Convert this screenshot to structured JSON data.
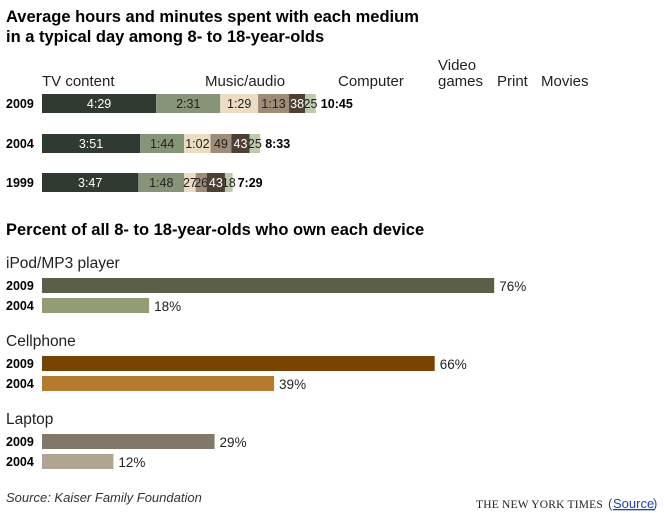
{
  "colors": {
    "tv": "#2f3a30",
    "music": "#869477",
    "computer": "#ecdcc2",
    "games": "#9f8c78",
    "print": "#4c4033",
    "movies": "#bfc9ad",
    "ipod_2009": "#5a6048",
    "ipod_2004": "#929d77",
    "cell_2009": "#784406",
    "cell_2004": "#b47a2d",
    "laptop_2009": "#837769",
    "laptop_2004": "#b1a490",
    "link": "#1a44a8"
  },
  "chart_data": [
    {
      "type": "bar",
      "orientation": "horizontal",
      "stacked": true,
      "title": "Average hours and minutes spent with each medium in a typical day among 8- to 18-year-olds",
      "title_lines": [
        "Average hours and minutes spent with each medium",
        "in a typical day among 8- to 18-year-olds"
      ],
      "unit": "minutes",
      "legend": [
        {
          "key": "tv",
          "label": "TV content"
        },
        {
          "key": "music",
          "label": "Music/audio"
        },
        {
          "key": "computer",
          "label": "Computer"
        },
        {
          "key": "games",
          "label": "Video games",
          "label_lines": [
            "Video",
            "games"
          ]
        },
        {
          "key": "print",
          "label": "Print"
        },
        {
          "key": "movies",
          "label": "Movies"
        }
      ],
      "categories": [
        "2009",
        "2004",
        "1999"
      ],
      "series": [
        {
          "name": "TV content",
          "key": "tv",
          "values": [
            269,
            231,
            227
          ],
          "labels": [
            "4:29",
            "3:51",
            "3:47"
          ]
        },
        {
          "name": "Music/audio",
          "key": "music",
          "values": [
            151,
            104,
            108
          ],
          "labels": [
            "2:31",
            "1:44",
            "1:48"
          ]
        },
        {
          "name": "Computer",
          "key": "computer",
          "values": [
            89,
            62,
            27
          ],
          "labels": [
            "1:29",
            "1:02",
            "27"
          ]
        },
        {
          "name": "Video games",
          "key": "games",
          "values": [
            73,
            49,
            26
          ],
          "labels": [
            "1:13",
            "49",
            "26"
          ]
        },
        {
          "name": "Print",
          "key": "print",
          "values": [
            38,
            43,
            43
          ],
          "labels": [
            "38",
            "43",
            "43"
          ]
        },
        {
          "name": "Movies",
          "key": "movies",
          "values": [
            25,
            25,
            18
          ],
          "labels": [
            "25",
            "25",
            "18"
          ]
        }
      ],
      "totals": [
        "10:45",
        "8:33",
        "7:29"
      ]
    },
    {
      "type": "bar",
      "orientation": "horizontal",
      "title": "Percent of all 8- to 18-year-olds who own each device",
      "unit": "percent",
      "groups": [
        {
          "device": "iPod/MP3 player",
          "bars": [
            {
              "year": "2009",
              "value": 76,
              "label": "76%",
              "color_key": "ipod_2009"
            },
            {
              "year": "2004",
              "value": 18,
              "label": "18%",
              "color_key": "ipod_2004"
            }
          ]
        },
        {
          "device": "Cellphone",
          "bars": [
            {
              "year": "2009",
              "value": 66,
              "label": "66%",
              "color_key": "cell_2009"
            },
            {
              "year": "2004",
              "value": 39,
              "label": "39%",
              "color_key": "cell_2004"
            }
          ]
        },
        {
          "device": "Laptop",
          "bars": [
            {
              "year": "2009",
              "value": 29,
              "label": "29%",
              "color_key": "laptop_2009"
            },
            {
              "year": "2004",
              "value": 12,
              "label": "12%",
              "color_key": "laptop_2004"
            }
          ]
        }
      ]
    }
  ],
  "footer": {
    "source": "Source: Kaiser Family Foundation",
    "publisher": "THE NEW YORK TIMES",
    "link_open": "(",
    "link": "Source",
    "link_close": ")"
  }
}
